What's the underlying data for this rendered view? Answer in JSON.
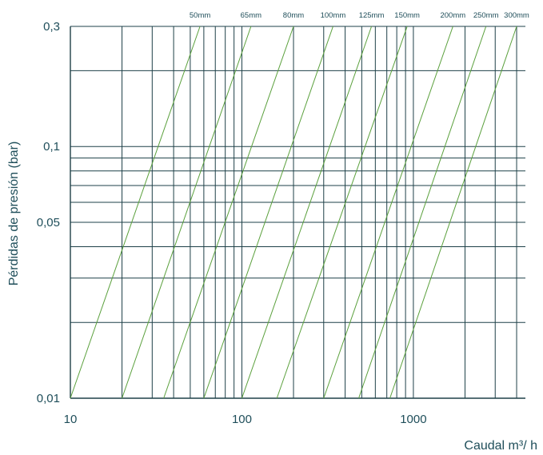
{
  "chart_data": {
    "type": "line",
    "title": "",
    "xlabel": "Caudal m³/ h",
    "ylabel": "Pérdidas de presión (bar)",
    "x_scale": "log",
    "y_scale": "log",
    "xlim": [
      10,
      4500
    ],
    "ylim": [
      0.01,
      0.3
    ],
    "x_tick_labels": [
      {
        "value": 10,
        "label": "10"
      },
      {
        "value": 100,
        "label": "100"
      },
      {
        "value": 1000,
        "label": "1000"
      }
    ],
    "y_tick_labels": [
      {
        "value": 0.3,
        "label": "0,3"
      },
      {
        "value": 0.1,
        "label": "0,1"
      },
      {
        "value": 0.05,
        "label": "0,05"
      },
      {
        "value": 0.01,
        "label": "0,01"
      }
    ],
    "x_grid": [
      10,
      20,
      30,
      40,
      50,
      60,
      70,
      80,
      90,
      100,
      200,
      300,
      400,
      500,
      600,
      700,
      800,
      900,
      1000,
      2000,
      3000,
      4000
    ],
    "y_grid": [
      0.01,
      0.02,
      0.03,
      0.04,
      0.05,
      0.06,
      0.07,
      0.08,
      0.09,
      0.1,
      0.2,
      0.3
    ],
    "series": [
      {
        "name": "50mm",
        "points": [
          [
            10,
            0.01
          ],
          [
            57,
            0.3
          ]
        ]
      },
      {
        "name": "65mm",
        "points": [
          [
            20,
            0.01
          ],
          [
            113,
            0.3
          ]
        ]
      },
      {
        "name": "80mm",
        "points": [
          [
            35,
            0.01
          ],
          [
            200,
            0.3
          ]
        ]
      },
      {
        "name": "100mm",
        "points": [
          [
            60,
            0.01
          ],
          [
            340,
            0.3
          ]
        ]
      },
      {
        "name": "125mm",
        "points": [
          [
            100,
            0.01
          ],
          [
            570,
            0.3
          ]
        ]
      },
      {
        "name": "150mm",
        "points": [
          [
            160,
            0.01
          ],
          [
            920,
            0.3
          ]
        ]
      },
      {
        "name": "200mm",
        "points": [
          [
            300,
            0.01
          ],
          [
            1700,
            0.3
          ]
        ]
      },
      {
        "name": "250mm",
        "points": [
          [
            480,
            0.01
          ],
          [
            2650,
            0.3
          ]
        ]
      },
      {
        "name": "300mm",
        "points": [
          [
            730,
            0.01
          ],
          [
            4000,
            0.3
          ]
        ]
      }
    ],
    "colors": {
      "grid": "#1e4048",
      "series": "#5aa03c",
      "text": "#1f4e5a"
    },
    "legend": "labels along top edge",
    "grid": true
  }
}
